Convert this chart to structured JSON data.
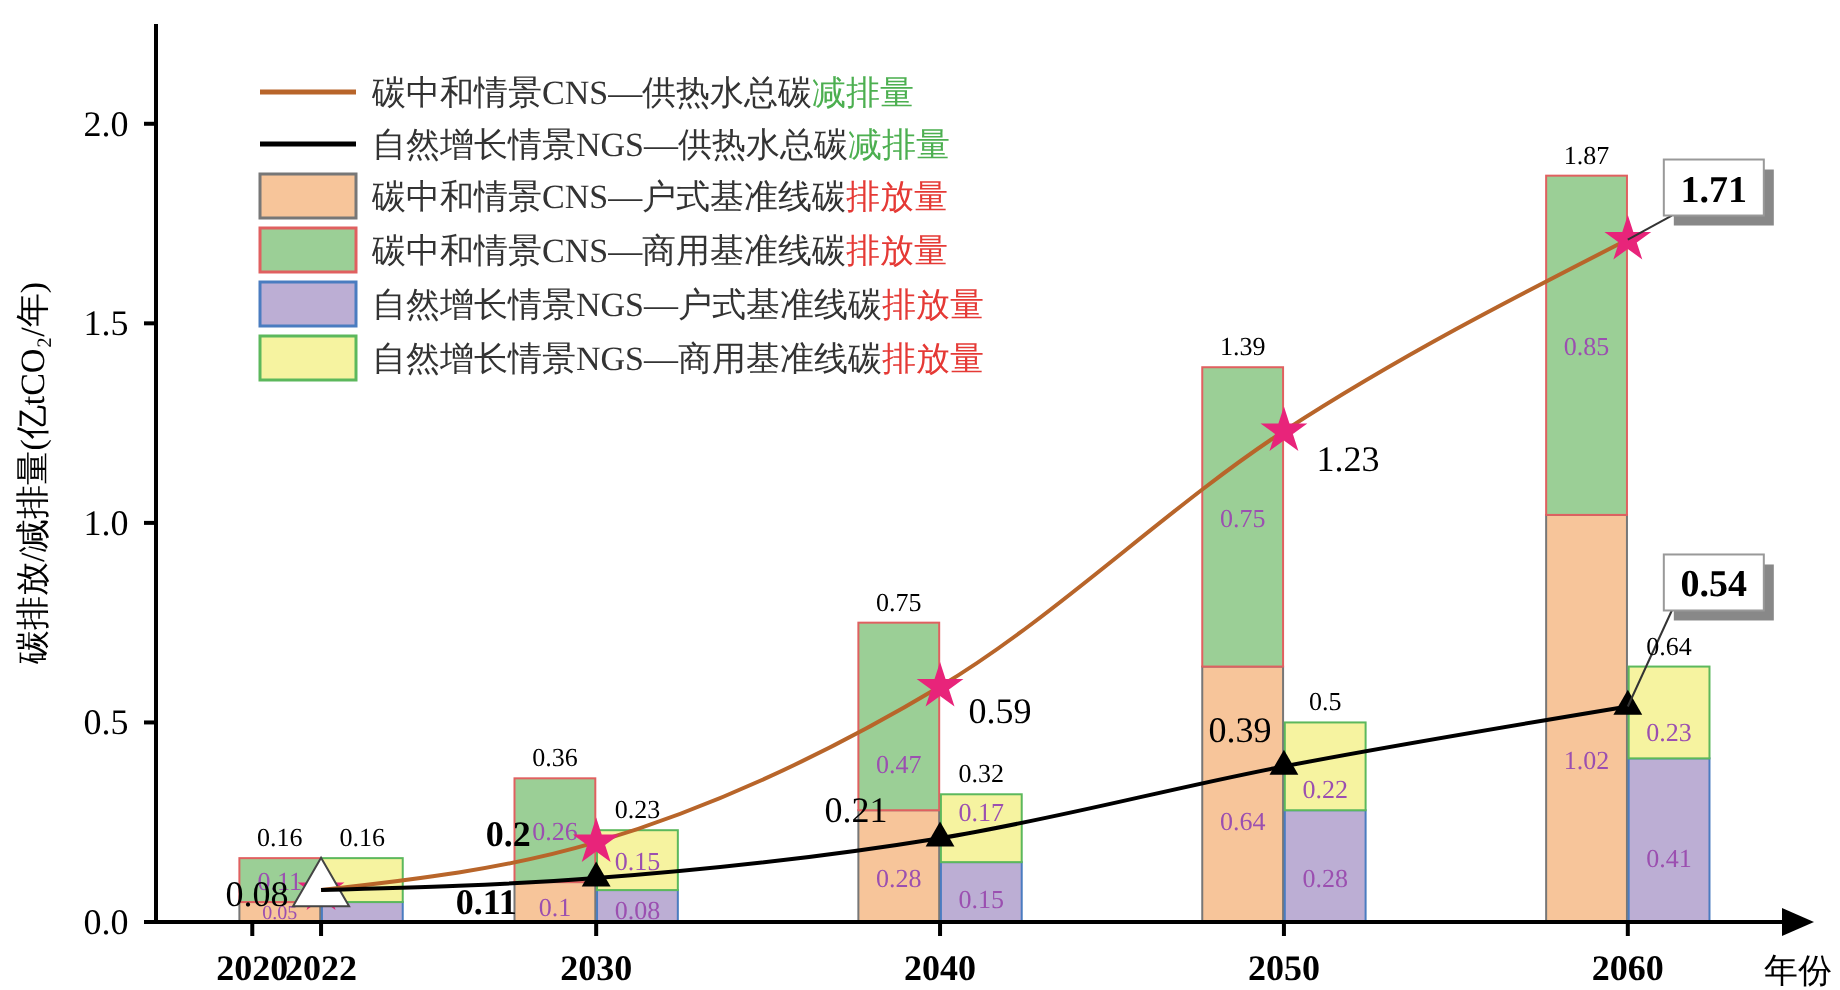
{
  "chart_data": {
    "type": "bar",
    "stacked": true,
    "ylabel": "碳排放/减排量(亿tCO₂/年)",
    "xlabel": "年份",
    "xlim": [
      2017.2,
      2064.6
    ],
    "xticks": [
      2020,
      2022,
      2030,
      2040,
      2050,
      2060
    ],
    "ylim": [
      0,
      2.25
    ],
    "yticks": [
      {
        "value": 0,
        "label": "0.0"
      },
      {
        "value": 0.5,
        "label": "0.5"
      },
      {
        "value": 1,
        "label": "1.0"
      },
      {
        "value": 1.5,
        "label": "1.5"
      },
      {
        "value": 2,
        "label": "2.0"
      }
    ],
    "grid": false,
    "legend": "top left",
    "x": [
      2020.8,
      2023.2,
      2028.8,
      2031.2,
      2038.8,
      2041.2,
      2048.8,
      2051.2,
      2058.8,
      2061.2
    ],
    "series": [
      {
        "name": "碳中和情景CNS—供热水总碳减排量",
        "type": "line",
        "color": "#b8652a",
        "marker": "star",
        "x": [
          2022,
          2030,
          2040,
          2050,
          2060
        ],
        "values": [
          0.08,
          0.2,
          0.59,
          1.23,
          1.71
        ],
        "value_labels": [
          null,
          "0.2",
          "0.59",
          "1.23",
          "1.71"
        ]
      },
      {
        "name": "自然增长情景NGS—供热水总碳减排量",
        "type": "line",
        "color": "#000000",
        "marker": "triangle",
        "x": [
          2022,
          2030,
          2040,
          2050,
          2060
        ],
        "values": [
          0.08,
          0.11,
          0.21,
          0.39,
          0.54
        ],
        "value_labels": [
          "0.08",
          "0.11",
          "0.21",
          "0.39",
          "0.54"
        ]
      },
      {
        "name": "碳中和情景CNS—户式基准线碳排放量",
        "color": "#f7c59a",
        "values": [
          0.05,
          null,
          0.1,
          null,
          0.28,
          null,
          0.64,
          null,
          1.02,
          null
        ],
        "value_labels": [
          "0.05",
          null,
          "0.1",
          null,
          "0.28",
          null,
          "0.64",
          null,
          "1.02",
          null
        ]
      },
      {
        "name": "碳中和情景CNS—商用基准线碳排放量",
        "color": "#9bcf96",
        "values": [
          0.11,
          null,
          0.26,
          null,
          0.47,
          null,
          0.75,
          null,
          0.85,
          null
        ],
        "value_labels": [
          "0.11",
          null,
          "0.26",
          null,
          "0.47",
          null,
          "0.75",
          null,
          "0.85",
          null
        ]
      },
      {
        "name": "自然增长情景NGS—户式基准线碳排放量",
        "color": "#bcaed4",
        "values": [
          null,
          0.05,
          null,
          0.08,
          null,
          0.15,
          null,
          0.28,
          null,
          0.41
        ],
        "value_labels": [
          null,
          null,
          null,
          "0.08",
          null,
          "0.15",
          null,
          "0.28",
          null,
          "0.41"
        ]
      },
      {
        "name": "自然增长情景NGS—商用基准线碳排放量",
        "color": "#f6f3a0",
        "values": [
          null,
          0.11,
          null,
          0.15,
          null,
          0.17,
          null,
          0.22,
          null,
          0.23
        ],
        "value_labels": [
          null,
          null,
          null,
          "0.15",
          null,
          "0.17",
          null,
          "0.22",
          null,
          "0.23"
        ]
      }
    ],
    "annotations": [
      {
        "text": "0.16",
        "x": 2020.8,
        "y": 0.16
      },
      {
        "text": "0.16",
        "x": 2023.2,
        "y": 0.16
      },
      {
        "text": "0.36",
        "x": 2028.8,
        "y": 0.36
      },
      {
        "text": "0.23",
        "x": 2031.2,
        "y": 0.23
      },
      {
        "text": "0.75",
        "x": 2038.8,
        "y": 0.75
      },
      {
        "text": "0.32",
        "x": 2041.2,
        "y": 0.32
      },
      {
        "text": "1.39",
        "x": 2048.8,
        "y": 1.39
      },
      {
        "text": "0.5",
        "x": 2051.2,
        "y": 0.5
      },
      {
        "text": "1.87",
        "x": 2058.8,
        "y": 1.87
      },
      {
        "text": "0.64",
        "x": 2061.2,
        "y": 0.64
      }
    ]
  }
}
